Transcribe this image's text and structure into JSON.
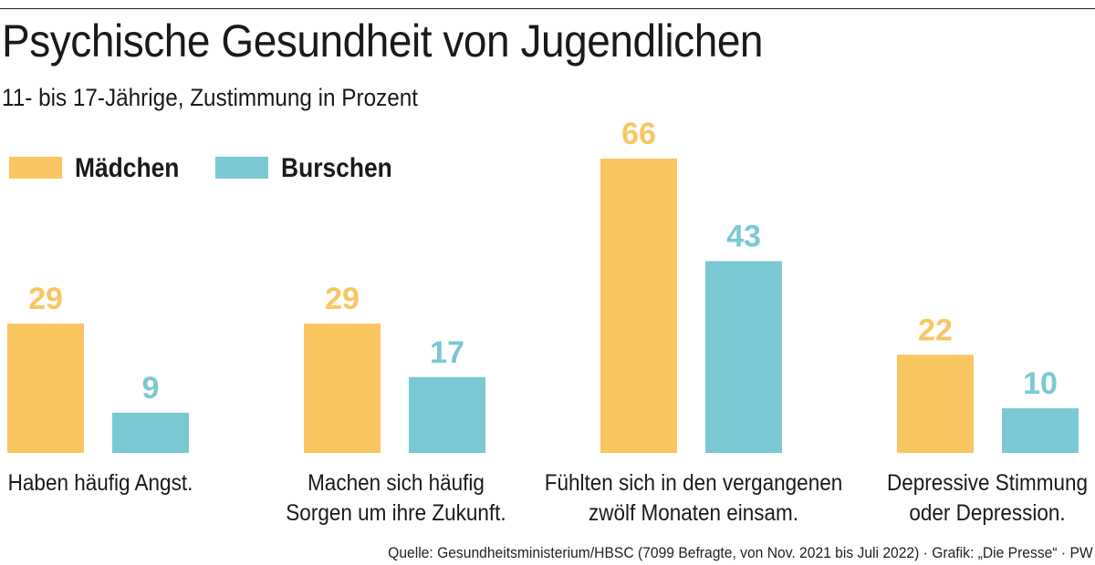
{
  "title": "Psychische Gesundheit von Jugendlichen",
  "subtitle": "11- bis 17-Jährige, Zustimmung in Prozent",
  "source": "Quelle: Gesundheitsministerium/HBSC (7099 Befragte, von Nov. 2021 bis Juli 2022) · Grafik: „Die Presse“ · PW",
  "colors": {
    "maedchen": "#f9c662",
    "burschen": "#7ac8d3"
  },
  "chart_data": {
    "type": "bar",
    "title": "Psychische Gesundheit von Jugendlichen",
    "subtitle": "11- bis 17-Jährige, Zustimmung in Prozent",
    "xlabel": "",
    "ylabel": "",
    "ylim": [
      0,
      66
    ],
    "grid": false,
    "legend": "top-left",
    "categories": [
      "Haben häufig Angst.",
      "Machen sich häufig Sorgen um ihre Zukunft.",
      "Fühlten sich in den vergangenen zwölf Monaten einsam.",
      "Depressive Stimmung oder Depression."
    ],
    "category_lines": [
      [
        "Haben häufig Angst."
      ],
      [
        "Machen sich häufig",
        "Sorgen um ihre Zukunft."
      ],
      [
        "Fühlten sich in den vergangenen",
        "zwölf Monaten einsam."
      ],
      [
        "Depressive Stimmung",
        "oder Depression."
      ]
    ],
    "series": [
      {
        "name": "Mädchen",
        "color": "#f9c662",
        "values": [
          29,
          29,
          66,
          22
        ]
      },
      {
        "name": "Burschen",
        "color": "#7ac8d3",
        "values": [
          9,
          17,
          43,
          10
        ]
      }
    ],
    "data_labels": true
  }
}
